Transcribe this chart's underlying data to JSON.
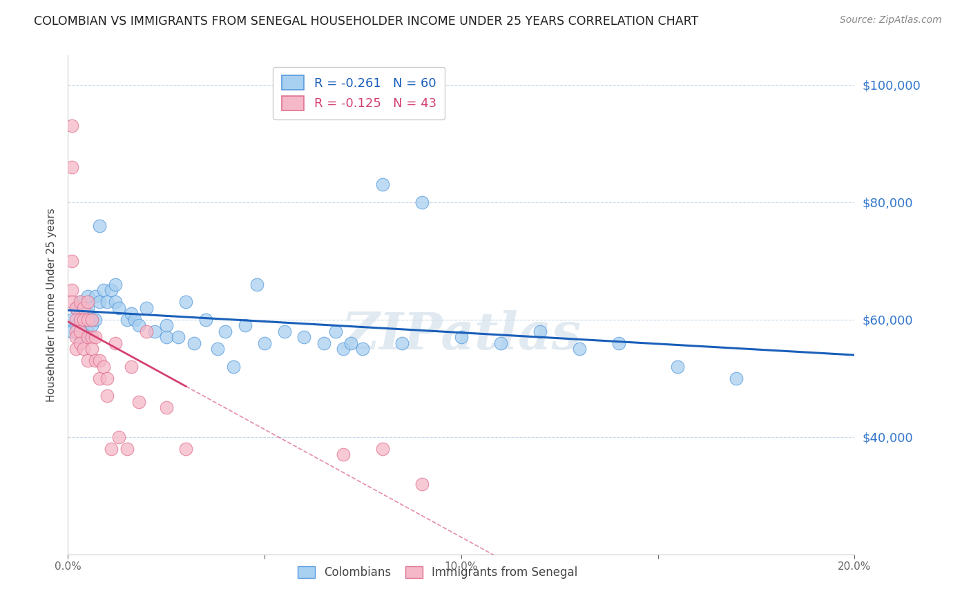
{
  "title": "COLOMBIAN VS IMMIGRANTS FROM SENEGAL HOUSEHOLDER INCOME UNDER 25 YEARS CORRELATION CHART",
  "source": "Source: ZipAtlas.com",
  "ylabel": "Householder Income Under 25 years",
  "legend_colombians": "Colombians",
  "legend_senegal": "Immigrants from Senegal",
  "R_colombians": -0.261,
  "N_colombians": 60,
  "R_senegal": -0.125,
  "N_senegal": 43,
  "x_min": 0.0,
  "x_max": 0.2,
  "y_min": 20000,
  "y_max": 105000,
  "yticks": [
    20000,
    40000,
    60000,
    80000,
    100000
  ],
  "ytick_labels_right": [
    "",
    "$40,000",
    "$60,000",
    "$80,000",
    "$100,000"
  ],
  "xticks": [
    0.0,
    0.05,
    0.1,
    0.15,
    0.2
  ],
  "xtick_labels": [
    "0.0%",
    "",
    "10.0%",
    "",
    "20.0%"
  ],
  "color_colombians": "#a8d0f0",
  "color_senegal": "#f5b8c8",
  "color_edge_colombians": "#5599dd",
  "color_edge_senegal": "#e07090",
  "color_trend_colombians": "#1a5fba",
  "color_trend_senegal": "#d44070",
  "color_axis_right": "#3377cc",
  "watermark": "ZIPatlas",
  "colombians_x": [
    0.001,
    0.001,
    0.002,
    0.002,
    0.003,
    0.003,
    0.003,
    0.004,
    0.004,
    0.005,
    0.005,
    0.005,
    0.005,
    0.006,
    0.006,
    0.007,
    0.007,
    0.008,
    0.008,
    0.009,
    0.01,
    0.011,
    0.012,
    0.012,
    0.013,
    0.015,
    0.016,
    0.017,
    0.018,
    0.02,
    0.022,
    0.025,
    0.025,
    0.028,
    0.03,
    0.032,
    0.035,
    0.038,
    0.04,
    0.042,
    0.045,
    0.048,
    0.05,
    0.055,
    0.06,
    0.065,
    0.068,
    0.07,
    0.072,
    0.075,
    0.08,
    0.085,
    0.09,
    0.1,
    0.11,
    0.12,
    0.13,
    0.14,
    0.155,
    0.17
  ],
  "colombians_y": [
    60000,
    58000,
    62000,
    59000,
    63000,
    61000,
    57000,
    60000,
    59000,
    64000,
    61000,
    58000,
    62000,
    60000,
    59000,
    64000,
    60000,
    76000,
    63000,
    65000,
    63000,
    65000,
    63000,
    66000,
    62000,
    60000,
    61000,
    60000,
    59000,
    62000,
    58000,
    57000,
    59000,
    57000,
    63000,
    56000,
    60000,
    55000,
    58000,
    52000,
    59000,
    66000,
    56000,
    58000,
    57000,
    56000,
    58000,
    55000,
    56000,
    55000,
    83000,
    56000,
    80000,
    57000,
    56000,
    58000,
    55000,
    56000,
    52000,
    50000
  ],
  "senegal_x": [
    0.001,
    0.001,
    0.001,
    0.001,
    0.001,
    0.002,
    0.002,
    0.002,
    0.002,
    0.002,
    0.003,
    0.003,
    0.003,
    0.003,
    0.004,
    0.004,
    0.004,
    0.005,
    0.005,
    0.005,
    0.005,
    0.006,
    0.006,
    0.006,
    0.007,
    0.007,
    0.008,
    0.008,
    0.009,
    0.01,
    0.01,
    0.011,
    0.012,
    0.013,
    0.015,
    0.016,
    0.018,
    0.02,
    0.025,
    0.03,
    0.07,
    0.08,
    0.09
  ],
  "senegal_y": [
    93000,
    86000,
    70000,
    65000,
    63000,
    62000,
    60000,
    58000,
    57000,
    55000,
    63000,
    60000,
    58000,
    56000,
    62000,
    60000,
    55000,
    63000,
    60000,
    57000,
    53000,
    60000,
    57000,
    55000,
    57000,
    53000,
    53000,
    50000,
    52000,
    50000,
    47000,
    38000,
    56000,
    40000,
    38000,
    52000,
    46000,
    58000,
    45000,
    38000,
    37000,
    38000,
    32000
  ]
}
